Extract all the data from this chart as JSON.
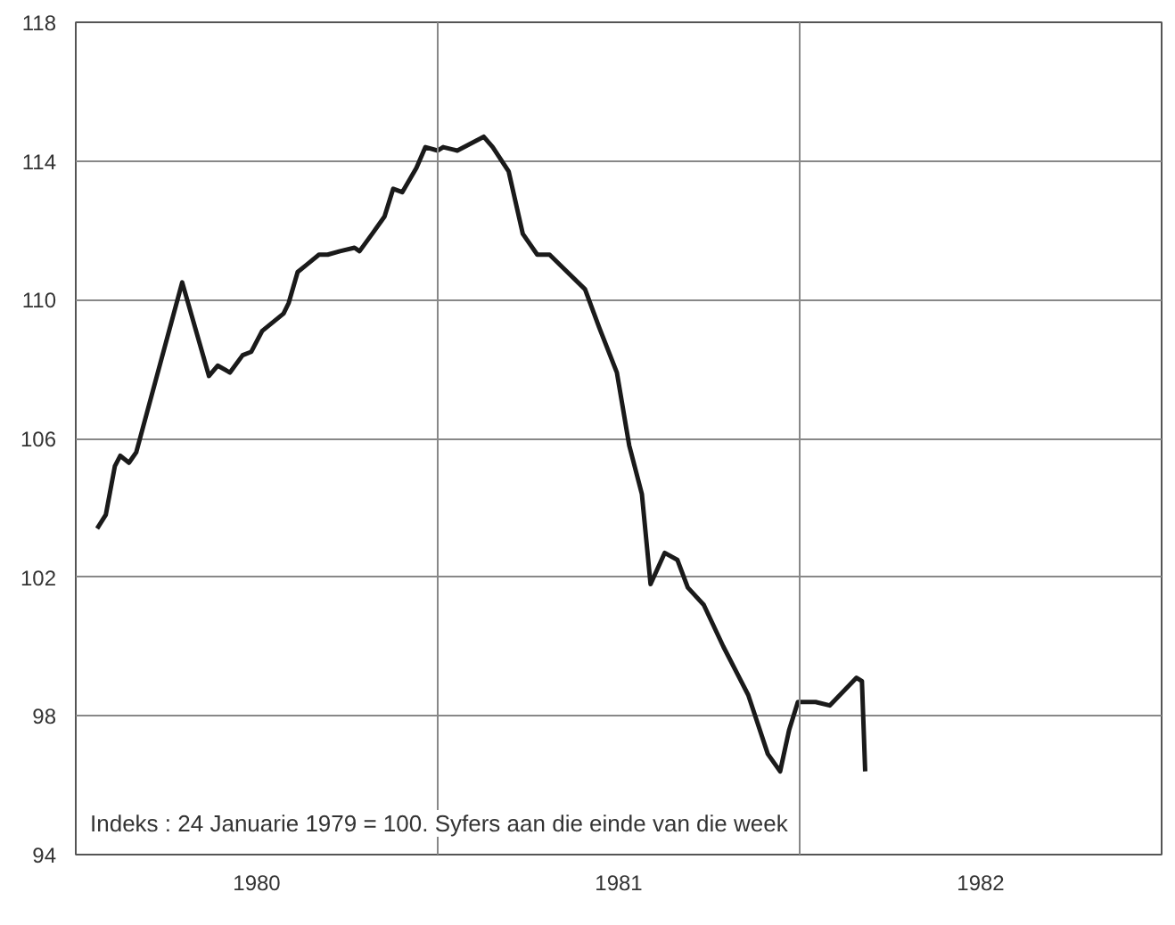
{
  "chart_data": {
    "type": "line",
    "x": [
      1980.059,
      1980.083,
      1980.108,
      1980.123,
      1980.147,
      1980.167,
      1980.294,
      1980.368,
      1980.392,
      1980.426,
      1980.461,
      1980.485,
      1980.515,
      1980.574,
      1980.588,
      1980.613,
      1980.637,
      1980.672,
      1980.696,
      1980.73,
      1980.77,
      1980.784,
      1980.819,
      1980.853,
      1980.877,
      1980.902,
      1980.941,
      1980.966,
      1981.0,
      1981.015,
      1981.054,
      1981.127,
      1981.152,
      1981.196,
      1981.235,
      1981.275,
      1981.309,
      1981.348,
      1981.407,
      1981.446,
      1981.495,
      1981.529,
      1981.564,
      1981.588,
      1981.627,
      1981.662,
      1981.691,
      1981.735,
      1981.789,
      1981.858,
      1981.912,
      1981.946,
      1981.971,
      1981.995,
      1982.044,
      1982.083,
      1982.157,
      1982.172,
      1982.181
    ],
    "series": [
      {
        "color": "#1a1a1a",
        "values": [
          103.4,
          103.8,
          105.2,
          105.5,
          105.3,
          105.6,
          110.5,
          107.8,
          108.1,
          107.9,
          108.4,
          108.5,
          109.1,
          109.6,
          109.9,
          110.8,
          111.0,
          111.3,
          111.3,
          111.4,
          111.5,
          111.4,
          111.9,
          112.4,
          113.2,
          113.1,
          113.8,
          114.4,
          114.3,
          114.4,
          114.3,
          114.7,
          114.4,
          113.7,
          111.9,
          111.3,
          111.3,
          110.9,
          110.3,
          109.2,
          107.9,
          105.8,
          104.4,
          101.8,
          102.7,
          102.5,
          101.7,
          101.2,
          100.0,
          98.6,
          96.9,
          96.4,
          97.6,
          98.4,
          98.4,
          98.3,
          99.1,
          99.0,
          96.4
        ]
      }
    ],
    "xlim": [
      1980,
      1983
    ],
    "xticks": [
      {
        "value": 1980.5,
        "label": "1980"
      },
      {
        "value": 1981.5,
        "label": "1981"
      },
      {
        "value": 1982.5,
        "label": "1982"
      }
    ],
    "ylim": [
      94,
      118
    ],
    "yticks": [
      94,
      98,
      102,
      106,
      110,
      114,
      118
    ],
    "grid": "y",
    "ref_lines": [
      {
        "axis": "x",
        "value": 1981,
        "color": "#888888"
      },
      {
        "axis": "x",
        "value": 1982,
        "color": "#888888"
      }
    ],
    "annotations": [
      "Indeks : 24 Januarie 1979 = 100. Syfers aan die einde van die week"
    ],
    "line_style": "solid"
  }
}
